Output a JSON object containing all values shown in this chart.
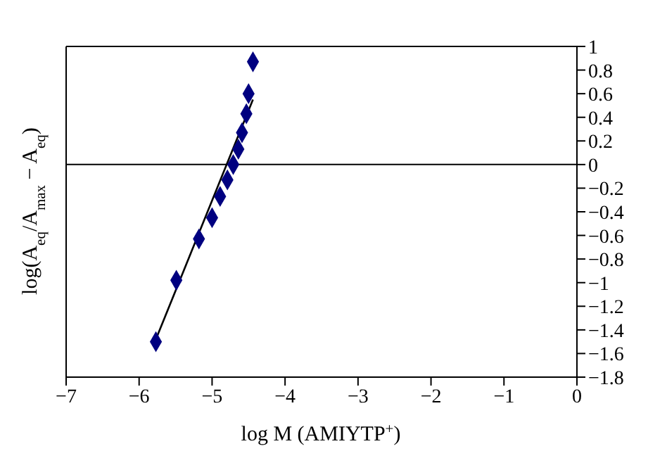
{
  "chart_data": {
    "type": "scatter",
    "xlabel": "log M (AMIYTP$^{+}$)",
    "ylabel": "log(A$_{eq}$/A$_{max}$ − A$_{eq}$)",
    "series": [
      {
        "color": "#000080",
        "x": [
          -5.77,
          -5.49,
          -5.18,
          -5.0,
          -4.89,
          -4.79,
          -4.71,
          -4.64,
          -4.59,
          -4.53,
          -4.5,
          -4.44
        ],
        "values": [
          -1.5,
          -0.98,
          -0.63,
          -0.45,
          -0.27,
          -0.13,
          0.0,
          0.13,
          0.27,
          0.43,
          0.6,
          0.87
        ]
      },
      {
        "type": "line",
        "color": "#000000",
        "x": [
          -5.77,
          -4.44
        ],
        "values": [
          -1.48,
          0.55
        ],
        "marker": "none"
      }
    ],
    "marker": "diamond",
    "xlim": [
      -7,
      0
    ],
    "xticks": [
      -7,
      -6,
      -5,
      -4,
      -3,
      -2,
      -1,
      0
    ],
    "ylim": [
      -1.8,
      1
    ],
    "yticks": [
      -1.8,
      -1.6,
      -1.4,
      -1.2,
      -1,
      -0.8,
      -0.6,
      -0.4,
      -0.2,
      0,
      0.2,
      0.4,
      0.6,
      0.8,
      1
    ],
    "ref_lines": [
      {
        "axis": "y",
        "value": 0,
        "color": "#000000"
      }
    ]
  }
}
